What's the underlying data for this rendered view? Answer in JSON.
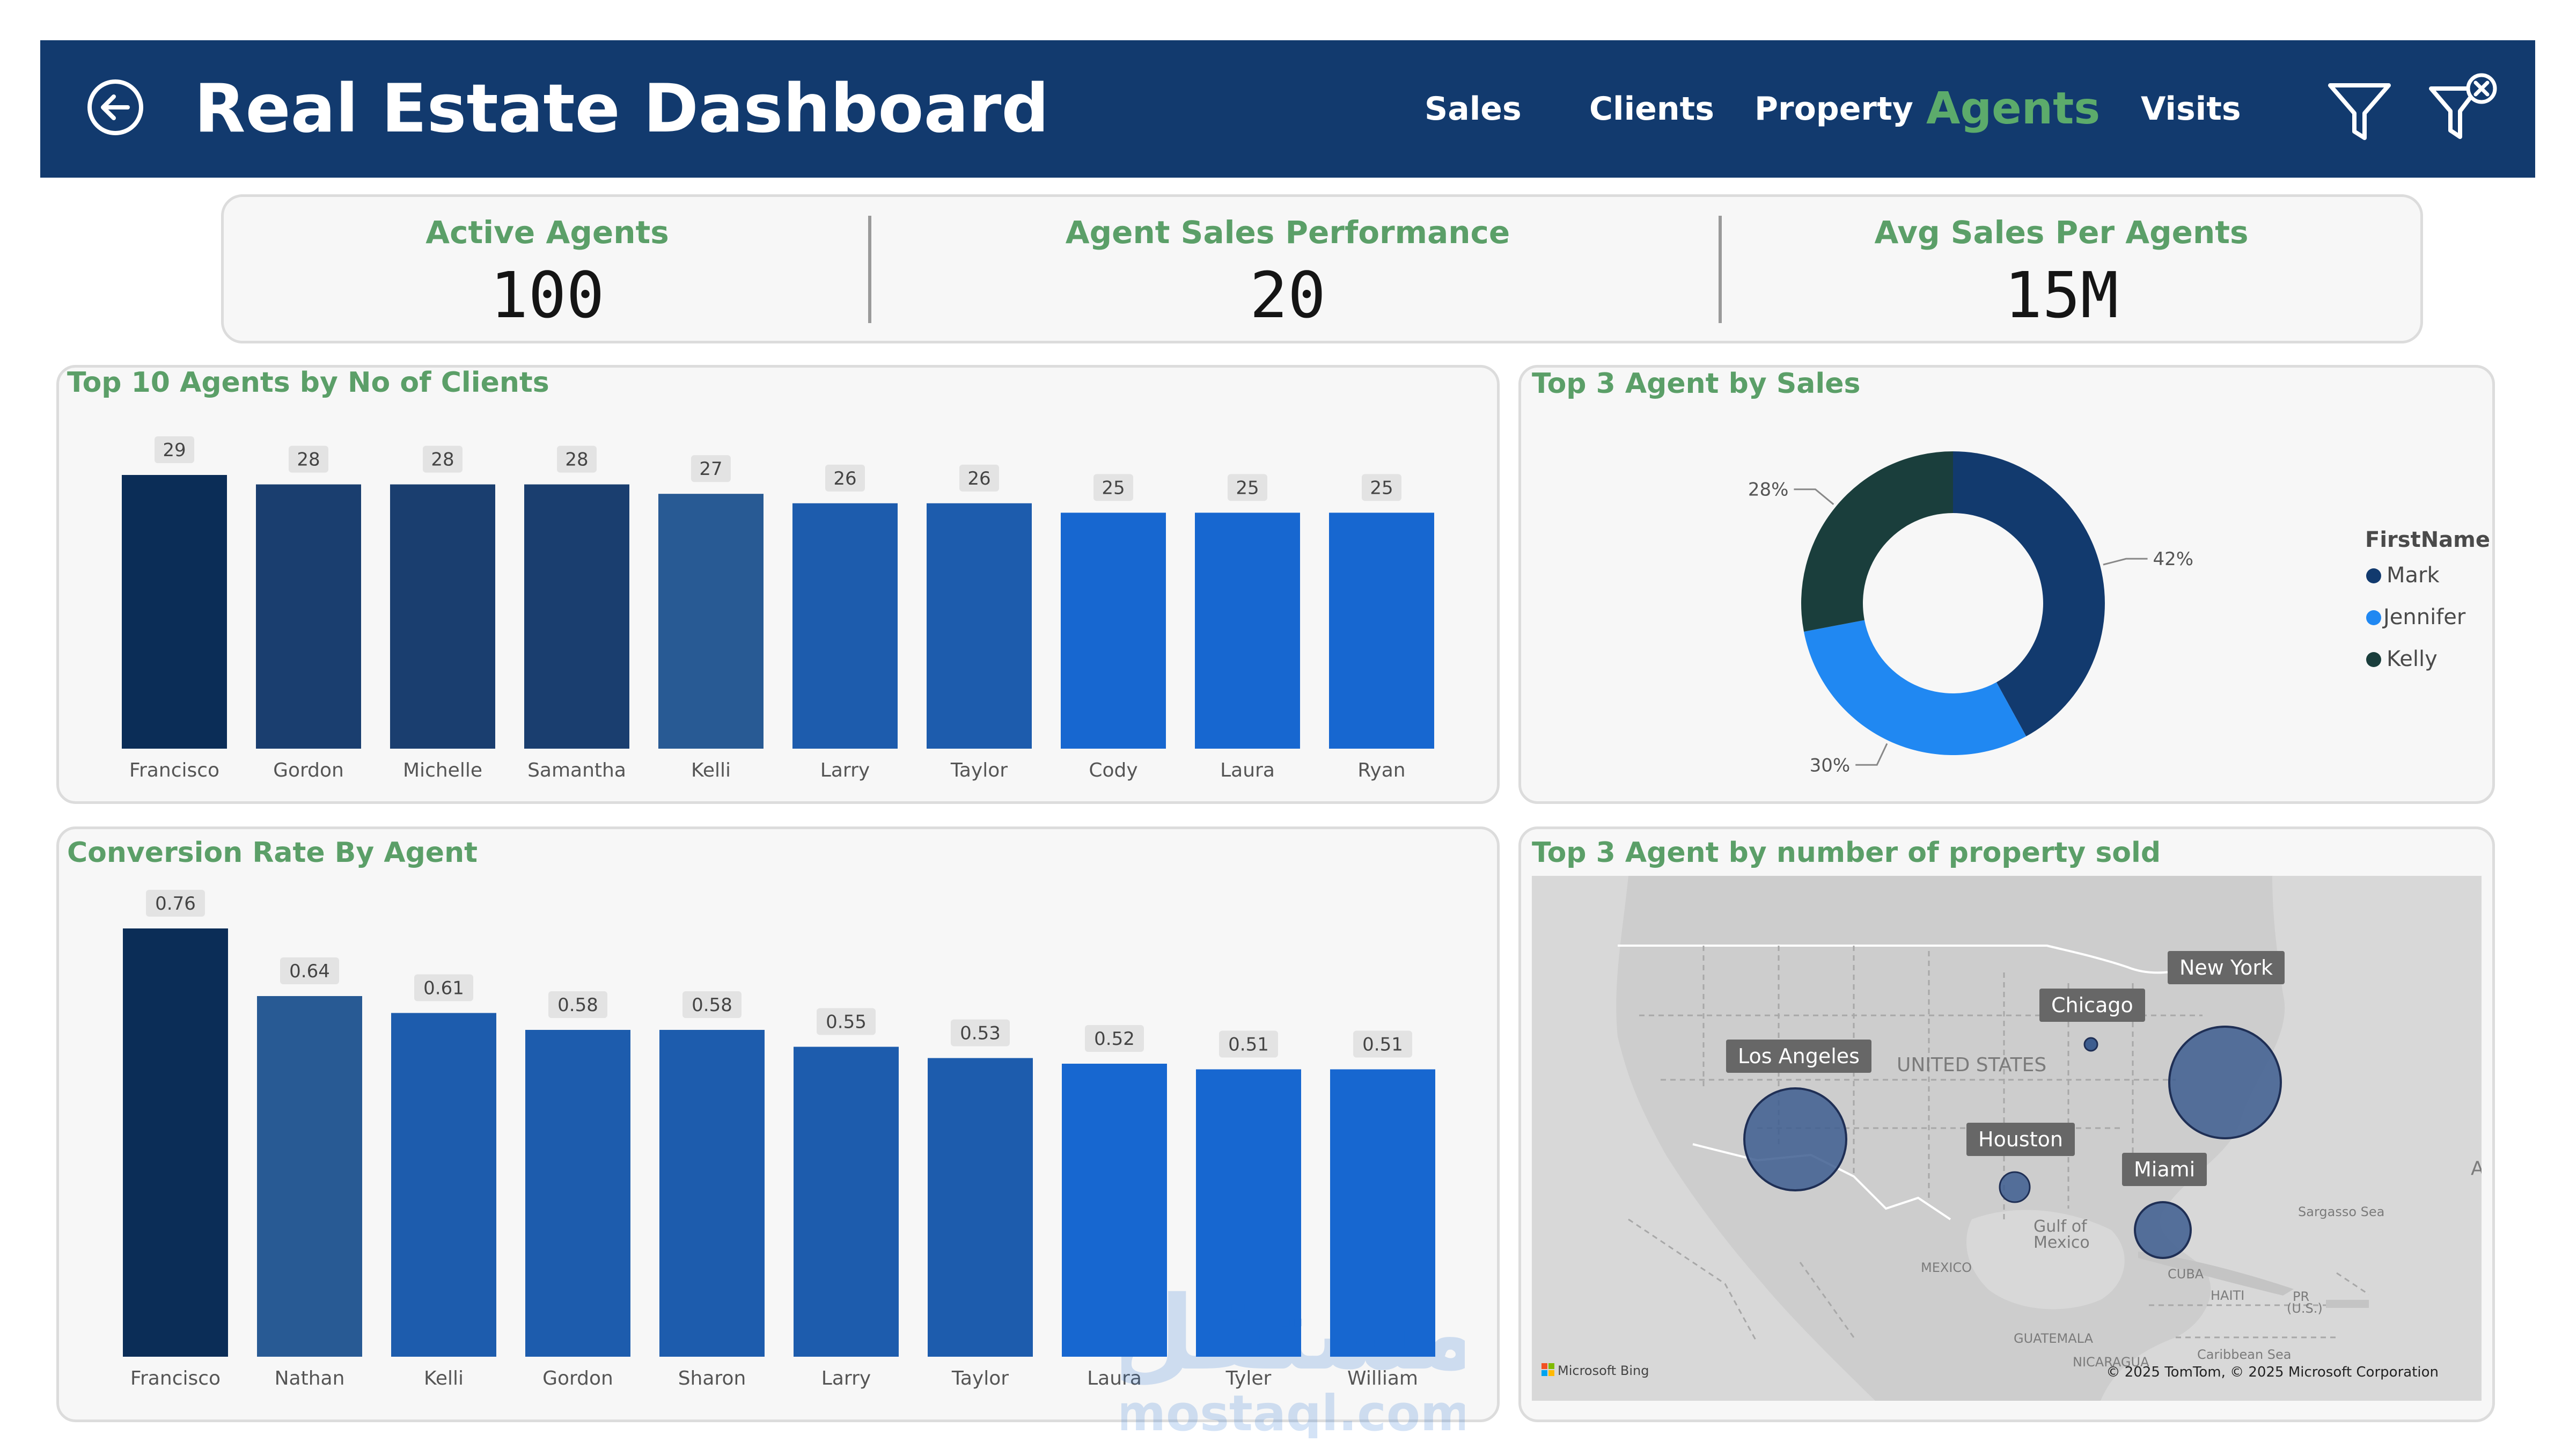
{
  "header": {
    "title": "Real Estate Dashboard",
    "nav": [
      "Sales",
      "Clients",
      "Property",
      "Agents",
      "Visits"
    ],
    "active_nav": "Agents",
    "brand_color": "#123a6e",
    "accent_color": "#5cab6b",
    "icons": [
      "back-arrow-icon",
      "filter-icon",
      "clear-filter-icon"
    ]
  },
  "kpis": [
    {
      "label": "Active Agents",
      "value": "100"
    },
    {
      "label": "Agent Sales Performance",
      "value": "20"
    },
    {
      "label": "Avg Sales Per Agents",
      "value": "15M"
    }
  ],
  "clients_chart": {
    "title": "Top 10 Agents by No of Clients",
    "chart_data": {
      "type": "bar",
      "categories": [
        "Francisco",
        "Gordon",
        "Michelle",
        "Samantha",
        "Kelli",
        "Larry",
        "Taylor",
        "Cody",
        "Laura",
        "Ryan"
      ],
      "values": [
        29,
        28,
        28,
        28,
        27,
        26,
        26,
        25,
        25,
        25
      ],
      "colors": [
        "#0b2d57",
        "#1a3e6f",
        "#1a3e6f",
        "#1a3e6f",
        "#285a94",
        "#1d5cad",
        "#1d5cad",
        "#1767d0",
        "#1767d0",
        "#1767d0"
      ]
    }
  },
  "sales_chart": {
    "title": "Top 3 Agent by Sales",
    "legend_title": "FirstName",
    "chart_data": {
      "type": "pie",
      "categories": [
        "Mark",
        "Jennifer",
        "Kelly"
      ],
      "values": [
        42,
        30,
        28
      ],
      "labels": [
        "42%",
        "30%",
        "28%"
      ],
      "colors": [
        "#123a6e",
        "#2088f2",
        "#1a3e3c"
      ]
    }
  },
  "conversion_chart": {
    "title": "Conversion Rate By Agent",
    "chart_data": {
      "type": "bar",
      "categories": [
        "Francisco",
        "Nathan",
        "Kelli",
        "Gordon",
        "Sharon",
        "Larry",
        "Taylor",
        "Laura",
        "Tyler",
        "William"
      ],
      "values": [
        0.76,
        0.64,
        0.61,
        0.58,
        0.58,
        0.55,
        0.53,
        0.52,
        0.51,
        0.51
      ],
      "labels": [
        "0.76",
        "0.64",
        "0.61",
        "0.58",
        "0.58",
        "0.55",
        "0.53",
        "0.52",
        "0.51",
        "0.51"
      ],
      "colors": [
        "#0b2d57",
        "#285a94",
        "#1d5cad",
        "#1d5cad",
        "#1d5cad",
        "#1d5cad",
        "#1d5cad",
        "#1767d0",
        "#1767d0",
        "#1767d0"
      ]
    }
  },
  "map": {
    "title": "Top 3 Agent by number of property sold",
    "cities": [
      {
        "name": "New York",
        "size": "large"
      },
      {
        "name": "Chicago",
        "size": "tiny"
      },
      {
        "name": "Los Angeles",
        "size": "large"
      },
      {
        "name": "Houston",
        "size": "small"
      },
      {
        "name": "Miami",
        "size": "medium"
      }
    ],
    "region_labels": [
      "UNITED STATES",
      "Gulf of",
      "Mexico",
      "MEXICO",
      "Sargasso Sea",
      "CUBA",
      "HAITI",
      "PR",
      "(U.S.)",
      "GUATEMALA",
      "NICARAGUA",
      "Caribbean Sea",
      "A"
    ],
    "brand": "Microsoft Bing",
    "credit": "© 2025 TomTom, © 2025 Microsoft Corporation"
  },
  "watermark": {
    "latin": "mostaql.com",
    "arabic": "مستقل"
  }
}
